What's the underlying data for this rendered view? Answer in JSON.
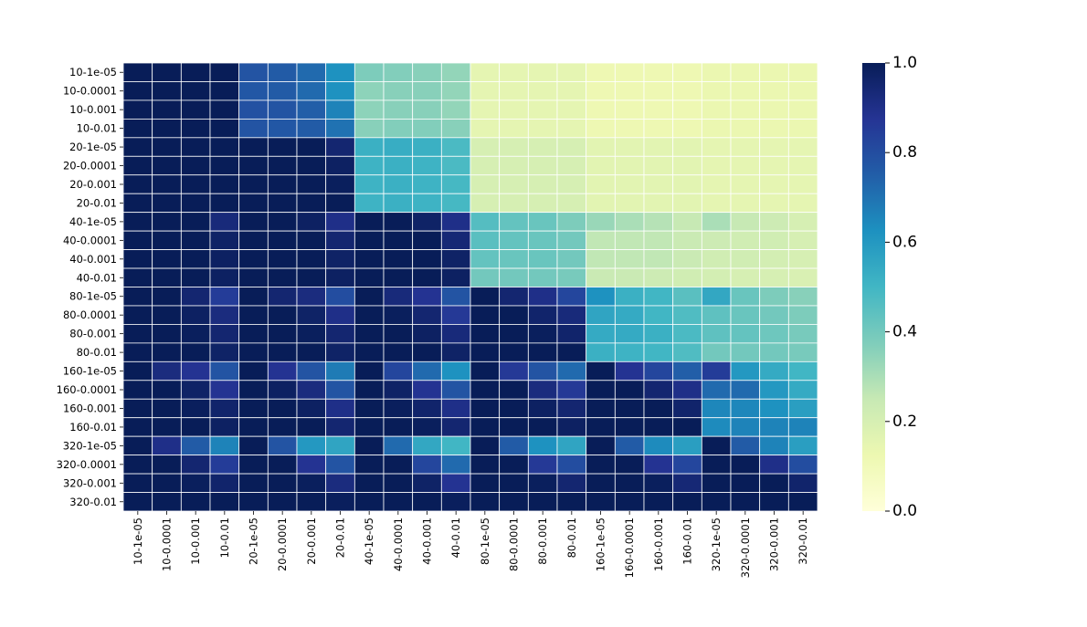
{
  "chart_data": {
    "type": "heatmap",
    "title": "",
    "xlabel": "",
    "ylabel": "",
    "labels": [
      "10-1e-05",
      "10-0.0001",
      "10-0.001",
      "10-0.01",
      "20-1e-05",
      "20-0.0001",
      "20-0.001",
      "20-0.01",
      "40-1e-05",
      "40-0.0001",
      "40-0.001",
      "40-0.01",
      "80-1e-05",
      "80-0.0001",
      "80-0.001",
      "80-0.01",
      "160-1e-05",
      "160-0.0001",
      "160-0.001",
      "160-0.01",
      "320-1e-05",
      "320-0.0001",
      "320-0.001",
      "320-0.01"
    ],
    "colorbar": {
      "range": [
        0,
        1
      ],
      "ticks": [
        "0.0",
        "0.2",
        "0.4",
        "0.6",
        "0.8",
        "1.0"
      ],
      "colormap": "YlGnBu"
    },
    "values": [
      [
        1,
        1,
        1,
        1,
        0.78,
        0.76,
        0.72,
        0.62,
        0.38,
        0.37,
        0.36,
        0.34,
        0.15,
        0.15,
        0.15,
        0.15,
        0.12,
        0.12,
        0.12,
        0.12,
        0.13,
        0.13,
        0.13,
        0.13
      ],
      [
        1,
        1,
        1,
        1,
        0.77,
        0.76,
        0.72,
        0.62,
        0.35,
        0.36,
        0.36,
        0.34,
        0.15,
        0.15,
        0.15,
        0.15,
        0.12,
        0.12,
        0.12,
        0.12,
        0.13,
        0.13,
        0.13,
        0.13
      ],
      [
        1,
        1,
        1,
        1,
        0.79,
        0.78,
        0.75,
        0.66,
        0.35,
        0.36,
        0.36,
        0.34,
        0.15,
        0.15,
        0.15,
        0.15,
        0.12,
        0.12,
        0.12,
        0.12,
        0.13,
        0.13,
        0.13,
        0.13
      ],
      [
        1,
        1,
        1,
        1,
        0.78,
        0.77,
        0.76,
        0.7,
        0.36,
        0.37,
        0.37,
        0.36,
        0.15,
        0.15,
        0.15,
        0.15,
        0.12,
        0.12,
        0.12,
        0.12,
        0.13,
        0.13,
        0.13,
        0.13
      ],
      [
        1,
        1,
        1,
        1,
        1,
        1,
        1,
        0.95,
        0.52,
        0.53,
        0.52,
        0.48,
        0.2,
        0.2,
        0.2,
        0.2,
        0.16,
        0.16,
        0.16,
        0.16,
        0.15,
        0.15,
        0.15,
        0.15
      ],
      [
        1,
        1,
        1,
        1,
        1,
        1,
        1,
        0.98,
        0.51,
        0.52,
        0.51,
        0.48,
        0.2,
        0.2,
        0.2,
        0.2,
        0.16,
        0.16,
        0.16,
        0.16,
        0.15,
        0.15,
        0.15,
        0.15
      ],
      [
        1,
        1,
        1,
        1,
        1,
        1,
        1,
        0.99,
        0.51,
        0.52,
        0.51,
        0.49,
        0.2,
        0.2,
        0.2,
        0.2,
        0.16,
        0.16,
        0.16,
        0.16,
        0.15,
        0.15,
        0.15,
        0.15
      ],
      [
        1,
        1,
        1,
        1,
        1,
        1,
        1,
        1,
        0.51,
        0.52,
        0.51,
        0.49,
        0.2,
        0.2,
        0.2,
        0.2,
        0.16,
        0.16,
        0.16,
        0.16,
        0.15,
        0.15,
        0.15,
        0.15
      ],
      [
        1,
        1,
        1,
        0.93,
        1,
        1,
        0.98,
        0.9,
        1,
        1,
        0.97,
        0.9,
        0.46,
        0.43,
        0.42,
        0.38,
        0.33,
        0.3,
        0.28,
        0.25,
        0.3,
        0.25,
        0.23,
        0.2
      ],
      [
        1,
        1,
        1,
        0.97,
        1,
        1,
        1,
        0.95,
        1,
        1,
        1,
        0.94,
        0.45,
        0.43,
        0.42,
        0.4,
        0.26,
        0.26,
        0.26,
        0.24,
        0.23,
        0.22,
        0.22,
        0.2
      ],
      [
        1,
        1,
        1,
        0.98,
        1,
        1,
        1,
        0.97,
        1,
        1,
        1,
        0.97,
        0.43,
        0.42,
        0.42,
        0.4,
        0.26,
        0.26,
        0.26,
        0.24,
        0.22,
        0.22,
        0.21,
        0.2
      ],
      [
        1,
        1,
        1,
        0.98,
        1,
        1,
        1,
        0.98,
        1,
        1,
        1,
        0.98,
        0.4,
        0.4,
        0.4,
        0.39,
        0.24,
        0.24,
        0.23,
        0.22,
        0.21,
        0.2,
        0.2,
        0.19
      ],
      [
        1,
        1,
        0.95,
        0.85,
        1,
        0.95,
        0.92,
        0.8,
        1,
        0.93,
        0.88,
        0.78,
        1,
        0.95,
        0.9,
        0.82,
        0.62,
        0.52,
        0.5,
        0.45,
        0.55,
        0.42,
        0.38,
        0.36
      ],
      [
        1,
        1,
        0.98,
        0.92,
        1,
        1,
        0.97,
        0.9,
        1,
        0.99,
        0.95,
        0.86,
        1,
        1,
        0.96,
        0.93,
        0.56,
        0.54,
        0.5,
        0.47,
        0.44,
        0.42,
        0.4,
        0.38
      ],
      [
        1,
        1,
        0.99,
        0.95,
        1,
        1,
        0.99,
        0.95,
        1,
        1,
        0.98,
        0.93,
        1,
        1,
        0.99,
        0.96,
        0.54,
        0.54,
        0.52,
        0.48,
        0.44,
        0.43,
        0.41,
        0.39
      ],
      [
        1,
        1,
        1,
        0.97,
        1,
        1,
        1,
        0.97,
        1,
        1,
        1,
        0.97,
        1,
        1,
        1,
        1,
        0.52,
        0.51,
        0.5,
        0.47,
        0.4,
        0.4,
        0.4,
        0.39
      ],
      [
        1,
        0.92,
        0.88,
        0.78,
        1,
        0.88,
        0.78,
        0.68,
        1,
        0.82,
        0.72,
        0.62,
        1,
        0.86,
        0.78,
        0.72,
        1,
        0.88,
        0.82,
        0.75,
        0.85,
        0.6,
        0.54,
        0.5
      ],
      [
        1,
        1,
        0.97,
        0.88,
        1,
        0.98,
        0.92,
        0.78,
        1,
        0.97,
        0.88,
        0.78,
        1,
        1,
        0.92,
        0.86,
        1,
        1,
        0.95,
        0.9,
        0.72,
        0.72,
        0.6,
        0.54
      ],
      [
        1,
        1,
        0.99,
        0.96,
        1,
        1,
        0.98,
        0.9,
        1,
        0.99,
        0.96,
        0.9,
        1,
        1,
        0.98,
        0.95,
        1,
        1,
        1,
        0.96,
        0.65,
        0.65,
        0.62,
        0.58
      ],
      [
        1,
        1,
        1,
        0.98,
        1,
        1,
        1,
        0.95,
        1,
        1,
        0.99,
        0.95,
        1,
        1,
        1,
        0.98,
        1,
        1,
        1,
        1,
        0.64,
        0.66,
        0.66,
        0.66
      ],
      [
        1,
        0.9,
        0.76,
        0.66,
        1,
        0.78,
        0.6,
        0.56,
        1,
        0.72,
        0.55,
        0.5,
        1,
        0.76,
        0.62,
        0.56,
        1,
        0.76,
        0.64,
        0.58,
        1,
        0.76,
        0.66,
        0.58
      ],
      [
        1,
        1,
        0.95,
        0.85,
        1,
        1,
        0.88,
        0.78,
        1,
        1,
        0.82,
        0.72,
        1,
        1,
        0.86,
        0.8,
        1,
        1,
        0.88,
        0.82,
        1,
        1,
        0.9,
        0.8
      ],
      [
        1,
        1,
        0.99,
        0.96,
        1,
        1,
        0.99,
        0.92,
        1,
        1,
        0.97,
        0.88,
        1,
        1,
        0.99,
        0.95,
        1,
        1,
        0.99,
        0.94,
        1,
        1,
        1,
        0.96
      ],
      [
        1,
        1,
        1,
        1,
        1,
        1,
        1,
        0.99,
        1,
        1,
        1,
        0.99,
        1,
        1,
        1,
        1,
        1,
        1,
        1,
        1,
        1,
        1,
        1,
        1
      ]
    ]
  }
}
